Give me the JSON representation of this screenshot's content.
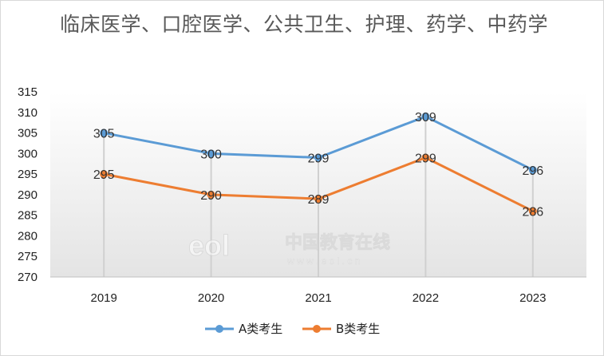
{
  "chart_data": {
    "type": "line",
    "title": "临床医学、口腔医学、公共卫生、护理、药学、中药学",
    "categories": [
      "2019",
      "2020",
      "2021",
      "2022",
      "2023"
    ],
    "series": [
      {
        "name": "A类考生",
        "values": [
          305,
          300,
          299,
          309,
          296
        ],
        "color": "#5b9bd5"
      },
      {
        "name": "B类考生",
        "values": [
          295,
          290,
          289,
          299,
          286
        ],
        "color": "#ed7d31"
      }
    ],
    "ylim": [
      270,
      315
    ],
    "yticks": [
      270,
      275,
      280,
      285,
      290,
      295,
      300,
      305,
      310,
      315
    ],
    "grid": false,
    "legend": "bottom",
    "watermark": {
      "text": "中国教育在线",
      "subtext": "w w w . e o l . c n",
      "logo": "eol"
    }
  }
}
